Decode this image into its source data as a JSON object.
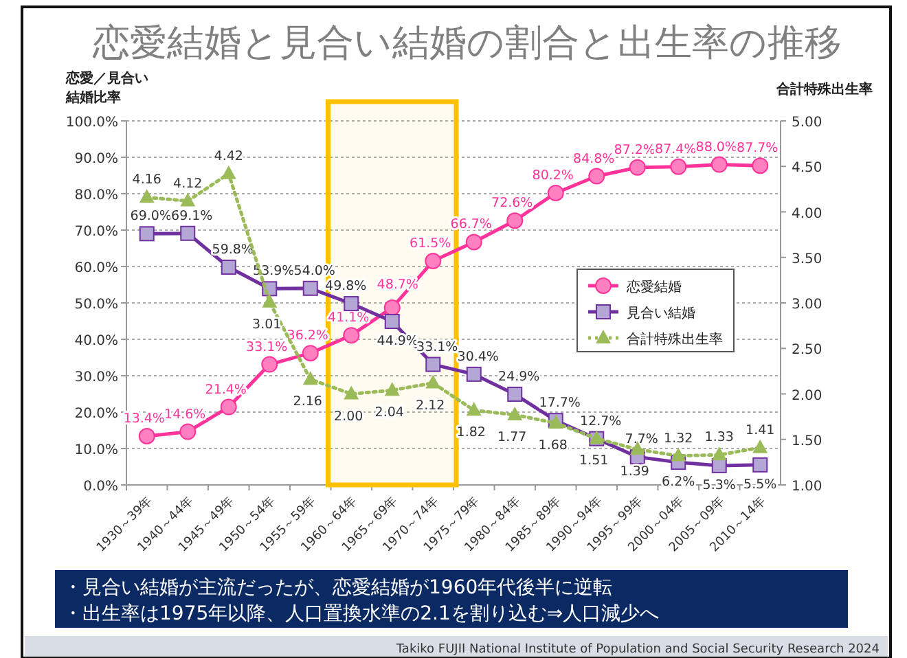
{
  "chart_data": {
    "type": "line",
    "title": "恋愛結婚と見合い結婚の割合と出生率の推移",
    "ylabel": "恋愛／見合い結婚比率",
    "y2label": "合計特殊出生率",
    "categories": [
      "1930～39年",
      "1940～44年",
      "1945～49年",
      "1950～54年",
      "1955～59年",
      "1960～64年",
      "1965～69年",
      "1970～74年",
      "1975～79年",
      "1980～84年",
      "1985～89年",
      "1990～94年",
      "1995～99年",
      "2000～04年",
      "2005～09年",
      "2010～14年"
    ],
    "series": [
      {
        "name": "恋愛結婚",
        "color": "#ff3399",
        "marker": "circle",
        "line_style": "solid",
        "values": [
          13.4,
          14.6,
          21.4,
          33.1,
          36.2,
          41.1,
          48.7,
          61.5,
          66.7,
          72.6,
          80.2,
          84.8,
          87.2,
          87.4,
          88.0,
          87.7
        ],
        "value_labels": [
          "13.4%",
          "14.6%",
          "21.4%",
          "33.1%",
          "36.2%",
          "41.1%",
          "48.7%",
          "61.5%",
          "66.7%",
          "72.6%",
          "80.2%",
          "84.8%",
          "87.2%",
          "87.4%",
          "88.0%",
          "87.7%"
        ]
      },
      {
        "name": "見合い結婚",
        "color": "#7030a0",
        "marker": "square",
        "line_style": "solid",
        "values": [
          69.0,
          69.1,
          59.8,
          53.9,
          54.0,
          49.8,
          44.9,
          33.1,
          30.4,
          24.9,
          17.7,
          12.7,
          7.7,
          6.2,
          5.3,
          5.5
        ],
        "value_labels": [
          "69.0%",
          "69.1%",
          "59.8%",
          "53.9%",
          "54.0%",
          "49.8%",
          "44.9%",
          "33.1%",
          "30.4%",
          "24.9%",
          "17.7%",
          "12.7%",
          "7.7%",
          "6.2%",
          "5.3%",
          "5.5%"
        ]
      },
      {
        "name": "合計特殊出生率",
        "color": "#9bbb59",
        "marker": "triangle",
        "line_style": "dotted",
        "axis": "y2",
        "values": [
          4.16,
          4.12,
          4.42,
          3.01,
          2.16,
          2.0,
          2.04,
          2.12,
          1.82,
          1.77,
          1.68,
          1.51,
          1.39,
          1.32,
          1.33,
          1.41
        ],
        "value_labels": [
          "4.16",
          "4.12",
          "4.42",
          "3.01",
          "2.16",
          "2.00",
          "2.04",
          "2.12",
          "1.82",
          "1.77",
          "1.68",
          "1.51",
          "1.39",
          "1.32",
          "1.33",
          "1.41"
        ]
      }
    ],
    "ylim": [
      0,
      100
    ],
    "yticks": [
      {
        "value": 0,
        "label": "0.0%"
      },
      {
        "value": 10,
        "label": "10.0%"
      },
      {
        "value": 20,
        "label": "20.0%"
      },
      {
        "value": 30,
        "label": "30.0%"
      },
      {
        "value": 40,
        "label": "40.0%"
      },
      {
        "value": 50,
        "label": "50.0%"
      },
      {
        "value": 60,
        "label": "60.0%"
      },
      {
        "value": 70,
        "label": "70.0%"
      },
      {
        "value": 80,
        "label": "80.0%"
      },
      {
        "value": 90,
        "label": "90.0%"
      },
      {
        "value": 100,
        "label": "100.0%"
      }
    ],
    "y2lim": [
      1,
      5
    ],
    "y2ticks": [
      {
        "value": 1,
        "label": "1.00"
      },
      {
        "value": 1.5,
        "label": "1.50"
      },
      {
        "value": 2,
        "label": "2.00"
      },
      {
        "value": 2.5,
        "label": "2.50"
      },
      {
        "value": 3,
        "label": "3.00"
      },
      {
        "value": 3.5,
        "label": "3.50"
      },
      {
        "value": 4,
        "label": "4.00"
      },
      {
        "value": 4.5,
        "label": "4.50"
      },
      {
        "value": 5,
        "label": "5.00"
      }
    ],
    "grid": "y",
    "legend": "right",
    "bands": [
      {
        "axis": "x",
        "from": "1960～64年",
        "to": "1970～74年",
        "color": "#ffc000"
      }
    ],
    "annotations": [
      "・見合い結婚が主流だったが、恋愛結婚が1960年代後半に逆転",
      "・出生率は1975年以降、人口置換水準の2.1を割り込む⇒人口減少へ",
      "Takiko FUJII  National Institute of Population and Social Security Research  2024"
    ]
  }
}
